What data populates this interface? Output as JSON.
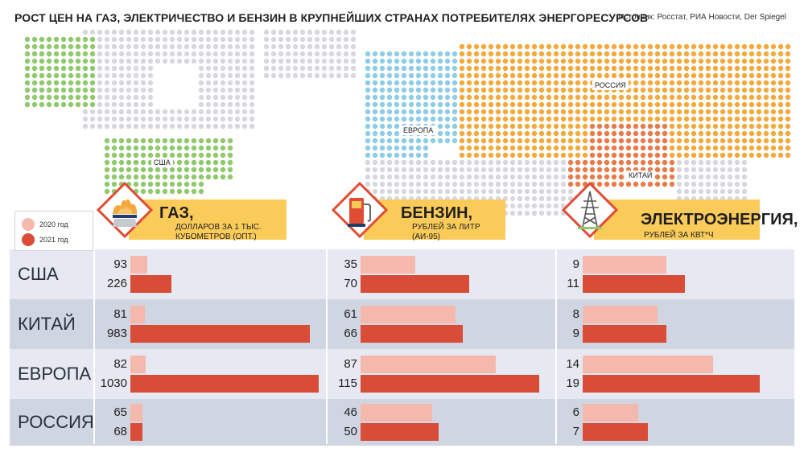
{
  "title": "РОСТ ЦЕН НА ГАЗ, ЭЛЕКТРИЧЕСТВО И БЕНЗИН В КРУПНЕЙШИХ СТРАНАХ ПОТРЕБИТЕЛЯХ ЭНЕРГОРЕСУРСОВ",
  "source": "Источник: Росстат, РИА Новости, Der Spiegel",
  "map_labels": {
    "usa": "США",
    "europe": "ЕВРОПА",
    "russia": "РОССИЯ",
    "china": "КИТАЙ"
  },
  "legend": {
    "y2020": "2020 год",
    "y2021": "2021 год"
  },
  "colors": {
    "y2020": "#f4b8ad",
    "y2021": "#d94c37",
    "header": "#fbcb5a",
    "usa": "#8fc96b",
    "europe": "#8ecde6",
    "russia": "#f3a93c",
    "china": "#e97a4a",
    "land": "#d6d8de"
  },
  "rows": [
    "США",
    "КИТАЙ",
    "ЕВРОПА",
    "РОССИЯ"
  ],
  "panels": {
    "gas": {
      "title": "ГАЗ,",
      "subtitle_line1": "ДОЛЛАРОВ ЗА 1 ТЫС.",
      "subtitle_line2": "КУБОМЕТРОВ (ОПТ.)",
      "icon": "gas-flame-icon"
    },
    "gasoline": {
      "title": "БЕНЗИН,",
      "subtitle_line1": "РУБЛЕЙ ЗА ЛИТР",
      "subtitle_line2": "(АИ-95)",
      "icon": "fuel-pump-icon"
    },
    "electricity": {
      "title": "ЭЛЕКТРОЭНЕРГИЯ,",
      "subtitle_line1": "РУБЛЕЙ ЗА КВТ*Ч",
      "subtitle_line2": "",
      "icon": "power-tower-icon"
    }
  },
  "chart_data": [
    {
      "type": "bar",
      "title": "ГАЗ, ДОЛЛАРОВ ЗА 1 ТЫС. КУБОМЕТРОВ (ОПТ.)",
      "categories": [
        "США",
        "КИТАЙ",
        "ЕВРОПА",
        "РОССИЯ"
      ],
      "series": [
        {
          "name": "2020 год",
          "values": [
            93,
            81,
            82,
            65
          ]
        },
        {
          "name": "2021 год",
          "values": [
            226,
            983,
            1030,
            68
          ]
        }
      ],
      "xlim": [
        0,
        1030
      ]
    },
    {
      "type": "bar",
      "title": "БЕНЗИН, РУБЛЕЙ ЗА ЛИТР (АИ-95)",
      "categories": [
        "США",
        "КИТАЙ",
        "ЕВРОПА",
        "РОССИЯ"
      ],
      "series": [
        {
          "name": "2020 год",
          "values": [
            35,
            61,
            87,
            46
          ]
        },
        {
          "name": "2021 год",
          "values": [
            70,
            66,
            115,
            50
          ]
        }
      ],
      "xlim": [
        0,
        115
      ]
    },
    {
      "type": "bar",
      "title": "ЭЛЕКТРОЭНЕРГИЯ, РУБЛЕЙ ЗА КВТ*Ч",
      "categories": [
        "США",
        "КИТАЙ",
        "ЕВРОПА",
        "РОССИЯ"
      ],
      "series": [
        {
          "name": "2020 год",
          "values": [
            9,
            8,
            14,
            6
          ]
        },
        {
          "name": "2021 год",
          "values": [
            11,
            9,
            19,
            7
          ]
        }
      ],
      "xlim": [
        0,
        19
      ]
    }
  ]
}
